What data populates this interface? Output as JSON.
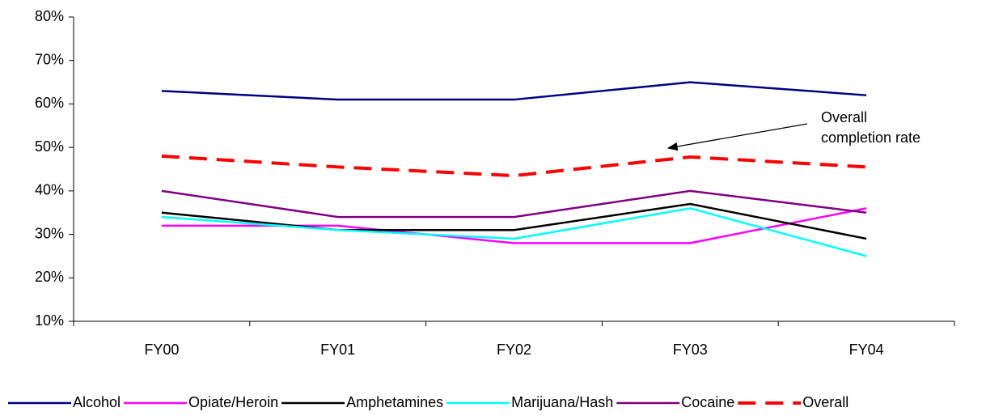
{
  "chart_data": {
    "type": "line",
    "categories": [
      "FY00",
      "FY01",
      "FY02",
      "FY03",
      "FY04"
    ],
    "series": [
      {
        "name": "Alcohol",
        "color": "#000080",
        "values": [
          63,
          61,
          61,
          65,
          62
        ]
      },
      {
        "name": "Opiate/Heroin",
        "color": "#ff00ff",
        "values": [
          32,
          32,
          28,
          28,
          36
        ]
      },
      {
        "name": "Amphetamines",
        "color": "#000000",
        "values": [
          35,
          31,
          31,
          37,
          29
        ]
      },
      {
        "name": "Marijuana/Hash",
        "color": "#00ffff",
        "values": [
          34,
          31,
          29,
          36,
          25
        ]
      },
      {
        "name": "Cocaine",
        "color": "#800080",
        "values": [
          40,
          34,
          34,
          40,
          35
        ]
      },
      {
        "name": "Overall",
        "color": "#ff0000",
        "dashed": true,
        "values": [
          48,
          45.5,
          43.5,
          47.8,
          45.5
        ]
      }
    ],
    "ylim": [
      10,
      80
    ],
    "yticks": [
      {
        "value": 10,
        "label": "10%"
      },
      {
        "value": 20,
        "label": "20%"
      },
      {
        "value": 30,
        "label": "30%"
      },
      {
        "value": 40,
        "label": "40%"
      },
      {
        "value": 50,
        "label": "50%"
      },
      {
        "value": 60,
        "label": "60%"
      },
      {
        "value": 70,
        "label": "70%"
      },
      {
        "value": 80,
        "label": "80%"
      }
    ],
    "grid": false,
    "legend": "bottom",
    "annotation": [
      "Overall",
      "completion rate"
    ]
  }
}
